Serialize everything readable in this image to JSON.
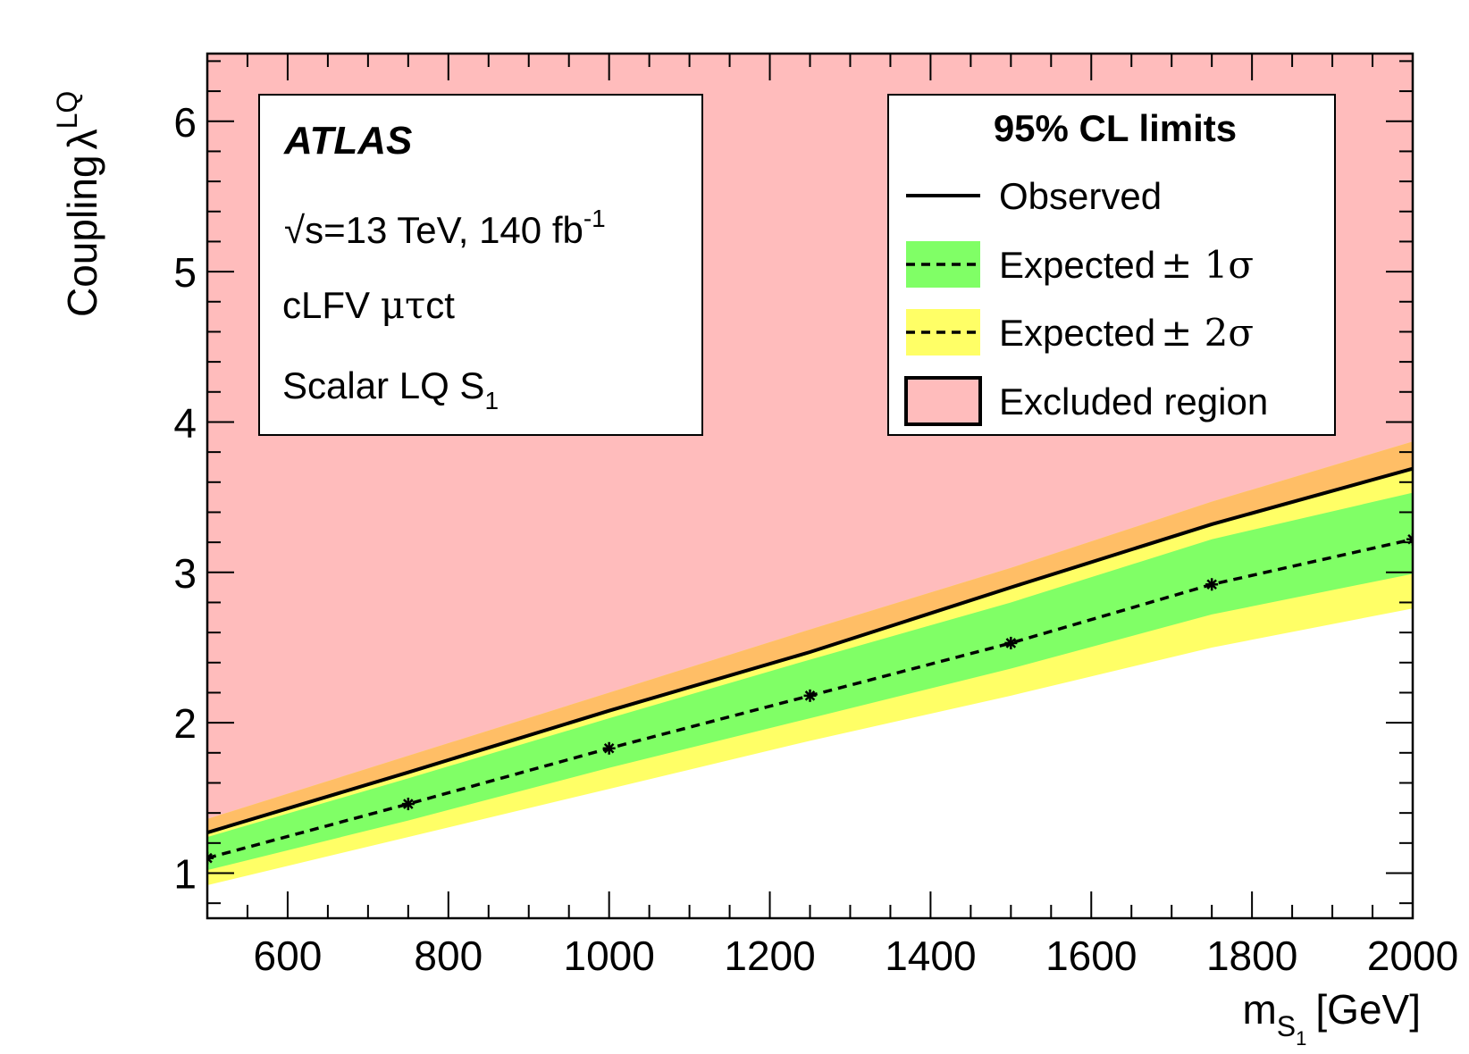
{
  "chart_data": {
    "type": "line",
    "title": "",
    "xlabel": "m",
    "xlabel_sub": "S",
    "xlabel_subsub": "1",
    "xlabel_unit": "[GeV]",
    "ylabel": "Coupling",
    "ylabel_symbol": "λ",
    "ylabel_sup": "LQ",
    "xlim": [
      500,
      2000
    ],
    "ylim": [
      0.7,
      6.45
    ],
    "x_ticks": [
      600,
      800,
      1000,
      1200,
      1400,
      1600,
      1800,
      2000
    ],
    "y_ticks": [
      1,
      2,
      3,
      4,
      5,
      6
    ],
    "x": [
      500,
      750,
      1000,
      1250,
      1500,
      1750,
      2000
    ],
    "series": [
      {
        "name": "Observed",
        "values": [
          1.27,
          1.67,
          2.08,
          2.47,
          2.9,
          3.32,
          3.69
        ]
      },
      {
        "name": "Expected",
        "values": [
          1.1,
          1.46,
          1.83,
          2.18,
          2.53,
          2.92,
          3.22
        ]
      },
      {
        "name": "Expected +1σ",
        "values": [
          1.24,
          1.63,
          2.03,
          2.42,
          2.8,
          3.22,
          3.53
        ]
      },
      {
        "name": "Expected −1σ",
        "values": [
          1.02,
          1.35,
          1.7,
          2.03,
          2.36,
          2.72,
          2.99
        ]
      },
      {
        "name": "Expected +2σ",
        "values": [
          1.36,
          1.78,
          2.2,
          2.62,
          3.03,
          3.47,
          3.87
        ]
      },
      {
        "name": "Expected −2σ",
        "values": [
          0.92,
          1.24,
          1.56,
          1.88,
          2.18,
          2.5,
          2.76
        ]
      }
    ],
    "colors": {
      "excluded": "#ffbcbc",
      "band_2sigma": "#ffff66",
      "band_1sigma": "#80ff66",
      "overlap": "#ffbe66",
      "line": "#000000"
    },
    "info": {
      "experiment": "ATLAS",
      "energy_prefix": "√",
      "energy_s": "s",
      "energy_text": "=13 TeV, 140 fb",
      "energy_sup": "-1",
      "channel_prefix": "cLFV ",
      "channel_greek": "μτ",
      "channel_suffix": "ct",
      "model": "Scalar LQ S",
      "model_sub": "1"
    },
    "legend": {
      "title": "95% CL limits",
      "observed": "Observed",
      "expected_1sigma": "Expected",
      "expected_1sigma_suffix": "± 1σ",
      "expected_2sigma": "Expected",
      "expected_2sigma_suffix": "± 2σ",
      "excluded": "Excluded region",
      "placement": "top-right"
    }
  }
}
